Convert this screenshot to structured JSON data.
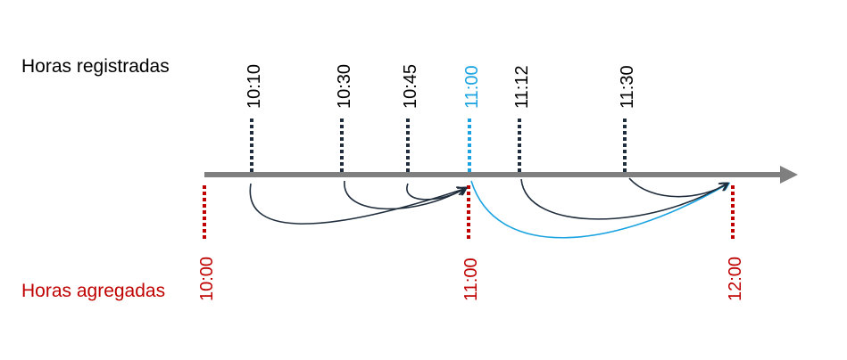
{
  "labels": {
    "registered": "Horas registradas",
    "aggregated": "Horas agregadas"
  },
  "registered_times": [
    {
      "label": "10:10",
      "highlight": false
    },
    {
      "label": "10:30",
      "highlight": false
    },
    {
      "label": "10:45",
      "highlight": false
    },
    {
      "label": "11:00",
      "highlight": true
    },
    {
      "label": "11:12",
      "highlight": false
    },
    {
      "label": "11:30",
      "highlight": false
    }
  ],
  "aggregated_times": [
    "10:00",
    "11:00",
    "12:00"
  ],
  "colors": {
    "text": "#000000",
    "registered_tick": "#1f2d3d",
    "highlight": "#1aa3e0",
    "aggregated": "#c00000",
    "axis": "#7f7f7f",
    "arrow": "#1f2d3d"
  }
}
